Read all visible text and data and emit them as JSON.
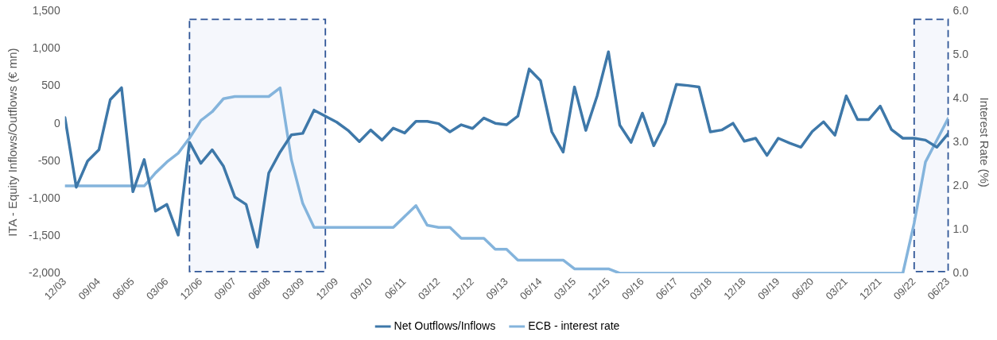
{
  "chart_data": {
    "type": "line",
    "ylabel": "ITA - Equity Inflows/Outflows (€ mn)",
    "y2label": "Interest Rate (%)",
    "x": [
      "2003-12",
      "2004-03",
      "2004-06",
      "2004-09",
      "2004-12",
      "2005-03",
      "2005-06",
      "2005-09",
      "2005-12",
      "2006-03",
      "2006-06",
      "2006-09",
      "2006-12",
      "2007-03",
      "2007-06",
      "2007-09",
      "2007-12",
      "2008-03",
      "2008-06",
      "2008-09",
      "2008-12",
      "2009-03",
      "2009-06",
      "2009-09",
      "2009-12",
      "2010-03",
      "2010-06",
      "2010-09",
      "2010-12",
      "2011-03",
      "2011-06",
      "2011-09",
      "2011-12",
      "2012-03",
      "2012-06",
      "2012-09",
      "2012-12",
      "2013-03",
      "2013-06",
      "2013-09",
      "2013-12",
      "2014-03",
      "2014-06",
      "2014-09",
      "2014-12",
      "2015-03",
      "2015-06",
      "2015-09",
      "2015-12",
      "2016-03",
      "2016-06",
      "2016-09",
      "2016-12",
      "2017-03",
      "2017-06",
      "2017-09",
      "2017-12",
      "2018-03",
      "2018-06",
      "2018-09",
      "2018-12",
      "2019-03",
      "2019-06",
      "2019-09",
      "2019-12",
      "2020-03",
      "2020-06",
      "2020-09",
      "2020-12",
      "2021-03",
      "2021-06",
      "2021-09",
      "2021-12",
      "2022-03",
      "2022-06",
      "2022-09",
      "2022-12",
      "2023-03",
      "2023-06"
    ],
    "series": [
      {
        "name": "Net Outflows/Inflows",
        "color": "#3e78a9",
        "values": [
          80,
          -850,
          -500,
          -350,
          320,
          480,
          -910,
          -480,
          -1170,
          -1080,
          -1490,
          -250,
          -530,
          -350,
          -570,
          -980,
          -1080,
          -1650,
          -660,
          -380,
          -150,
          -130,
          180,
          100,
          20,
          -90,
          -240,
          -85,
          -220,
          -60,
          -125,
          30,
          30,
          0,
          -110,
          -15,
          -65,
          75,
          5,
          -15,
          100,
          730,
          575,
          -110,
          -380,
          490,
          -90,
          370,
          960,
          -20,
          -250,
          140,
          -295,
          5,
          525,
          510,
          490,
          -110,
          -85,
          5,
          -235,
          -195,
          -425,
          -195,
          -260,
          -315,
          -105,
          25,
          -155,
          370,
          55,
          55,
          235,
          -80,
          -195,
          -195,
          -220,
          -315,
          -135
        ]
      },
      {
        "name": "ECB - interest rate",
        "color": "#84b4dc",
        "axis": "y2",
        "values": [
          2.0,
          2.0,
          2.0,
          2.0,
          2.0,
          2.0,
          2.0,
          2.0,
          2.3,
          2.55,
          2.75,
          3.1,
          3.5,
          3.7,
          4.0,
          4.05,
          4.05,
          4.05,
          4.05,
          4.25,
          2.6,
          1.6,
          1.05,
          1.05,
          1.05,
          1.05,
          1.05,
          1.05,
          1.05,
          1.05,
          1.3,
          1.55,
          1.1,
          1.05,
          1.05,
          0.8,
          0.8,
          0.8,
          0.55,
          0.55,
          0.3,
          0.3,
          0.3,
          0.3,
          0.3,
          0.1,
          0.1,
          0.1,
          0.1,
          0,
          0,
          0,
          0,
          0,
          0,
          0,
          0,
          0,
          0,
          0,
          0,
          0,
          0,
          0,
          0,
          0,
          0,
          0,
          0,
          0,
          0,
          0,
          0,
          0,
          0,
          1.15,
          2.55,
          3.05,
          3.55
        ]
      }
    ],
    "xlim": [
      "2003-12",
      "2023-06"
    ],
    "xticks": [
      {
        "value": "2003-12",
        "label": "12/03"
      },
      {
        "value": "2004-09",
        "label": "09/04"
      },
      {
        "value": "2005-06",
        "label": "06/05"
      },
      {
        "value": "2006-03",
        "label": "03/06"
      },
      {
        "value": "2006-12",
        "label": "12/06"
      },
      {
        "value": "2007-09",
        "label": "09/07"
      },
      {
        "value": "2008-06",
        "label": "06/08"
      },
      {
        "value": "2009-03",
        "label": "03/09"
      },
      {
        "value": "2009-12",
        "label": "12/09"
      },
      {
        "value": "2010-09",
        "label": "09/10"
      },
      {
        "value": "2011-06",
        "label": "06/11"
      },
      {
        "value": "2012-03",
        "label": "03/12"
      },
      {
        "value": "2012-12",
        "label": "12/12"
      },
      {
        "value": "2013-09",
        "label": "09/13"
      },
      {
        "value": "2014-06",
        "label": "06/14"
      },
      {
        "value": "2015-03",
        "label": "03/15"
      },
      {
        "value": "2015-12",
        "label": "12/15"
      },
      {
        "value": "2016-09",
        "label": "09/16"
      },
      {
        "value": "2017-06",
        "label": "06/17"
      },
      {
        "value": "2018-03",
        "label": "03/18"
      },
      {
        "value": "2018-12",
        "label": "12/18"
      },
      {
        "value": "2019-09",
        "label": "09/19"
      },
      {
        "value": "2020-06",
        "label": "06/20"
      },
      {
        "value": "2021-03",
        "label": "03/21"
      },
      {
        "value": "2021-12",
        "label": "12/21"
      },
      {
        "value": "2022-09",
        "label": "09/22"
      },
      {
        "value": "2023-06",
        "label": "06/23"
      }
    ],
    "ylim": [
      -2000,
      1500
    ],
    "yticks": [
      {
        "value": -2000,
        "label": "-2,000"
      },
      {
        "value": -1500,
        "label": "-1,500"
      },
      {
        "value": -1000,
        "label": "-1,000"
      },
      -500,
      0,
      500,
      {
        "value": 1000,
        "label": "1,000"
      },
      {
        "value": 1500,
        "label": "1,500"
      }
    ],
    "y2lim": [
      0,
      6
    ],
    "y2ticks": [
      {
        "value": 0,
        "label": "0.0"
      },
      {
        "value": 1,
        "label": "1.0"
      },
      {
        "value": 2,
        "label": "2.0"
      },
      {
        "value": 3,
        "label": "3.0"
      },
      {
        "value": 4,
        "label": "4.0"
      },
      {
        "value": 5,
        "label": "5.0"
      },
      {
        "value": 6,
        "label": "6.0"
      }
    ],
    "bands": [
      {
        "axis": "x",
        "from": "2006-09",
        "to": "2009-09",
        "color": "#f5f7fc"
      },
      {
        "axis": "x",
        "from": "2022-09",
        "to": "2023-06",
        "color": "#f5f7fc"
      }
    ],
    "legend": "bottom",
    "grid": false,
    "marker": "none",
    "line_style": "solid"
  }
}
